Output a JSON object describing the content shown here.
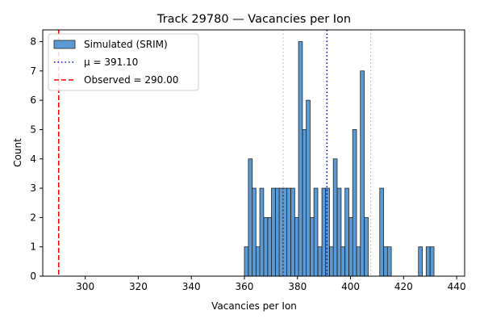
{
  "chart_data": {
    "type": "bar",
    "title": "Track 29780 — Vacancies per Ion",
    "xlabel": "Vacancies per Ion",
    "ylabel": "Count",
    "xlim": [
      284,
      443
    ],
    "ylim": [
      0,
      8.4
    ],
    "xticks": [
      300,
      320,
      340,
      360,
      380,
      400,
      420,
      440
    ],
    "yticks": [
      0,
      1,
      2,
      3,
      4,
      5,
      6,
      7,
      8
    ],
    "bin_width": 1.46,
    "histogram": {
      "name": "Simulated (SRIM)",
      "bin_starts": [
        360.0,
        361.5,
        362.9,
        364.4,
        365.8,
        367.3,
        368.8,
        370.2,
        371.7,
        373.1,
        374.6,
        376.0,
        377.5,
        379.0,
        380.4,
        381.9,
        383.3,
        384.8,
        386.2,
        387.7,
        389.2,
        390.6,
        392.1,
        393.5,
        395.0,
        396.4,
        397.9,
        399.4,
        400.8,
        402.3,
        403.7,
        405.2,
        406.6,
        408.1,
        409.6,
        411.0,
        412.5,
        413.9,
        415.4,
        416.8,
        418.3,
        419.8,
        421.2,
        422.7,
        424.1,
        425.6,
        427.0,
        428.5,
        430.0,
        431.4,
        432.9
      ],
      "counts": [
        1,
        4,
        3,
        1,
        3,
        2,
        2,
        3,
        3,
        3,
        3,
        3,
        3,
        2,
        8,
        5,
        6,
        2,
        3,
        1,
        3,
        3,
        1,
        4,
        3,
        1,
        3,
        2,
        5,
        1,
        7,
        2,
        0,
        0,
        0,
        3,
        1,
        1,
        0,
        0,
        0,
        0,
        0,
        0,
        0,
        1,
        0,
        1,
        1,
        0,
        0
      ],
      "color": "#5b9bd5"
    },
    "lines": [
      {
        "name": "μ = 391.10",
        "x": 391.1,
        "style": "dotted",
        "color": "#0000ff"
      },
      {
        "name": "Observed = 290.00",
        "x": 290.0,
        "style": "dashed",
        "color": "#ff0000"
      },
      {
        "name": "",
        "x": 374.6,
        "style": "dotted",
        "color": "#b0b0b0"
      },
      {
        "name": "",
        "x": 407.6,
        "style": "dotted",
        "color": "#b0b0b0"
      }
    ],
    "legend": {
      "placement": "top-left",
      "entries": [
        "Simulated (SRIM)",
        "μ = 391.10",
        "Observed = 290.00"
      ]
    },
    "grid": false
  }
}
